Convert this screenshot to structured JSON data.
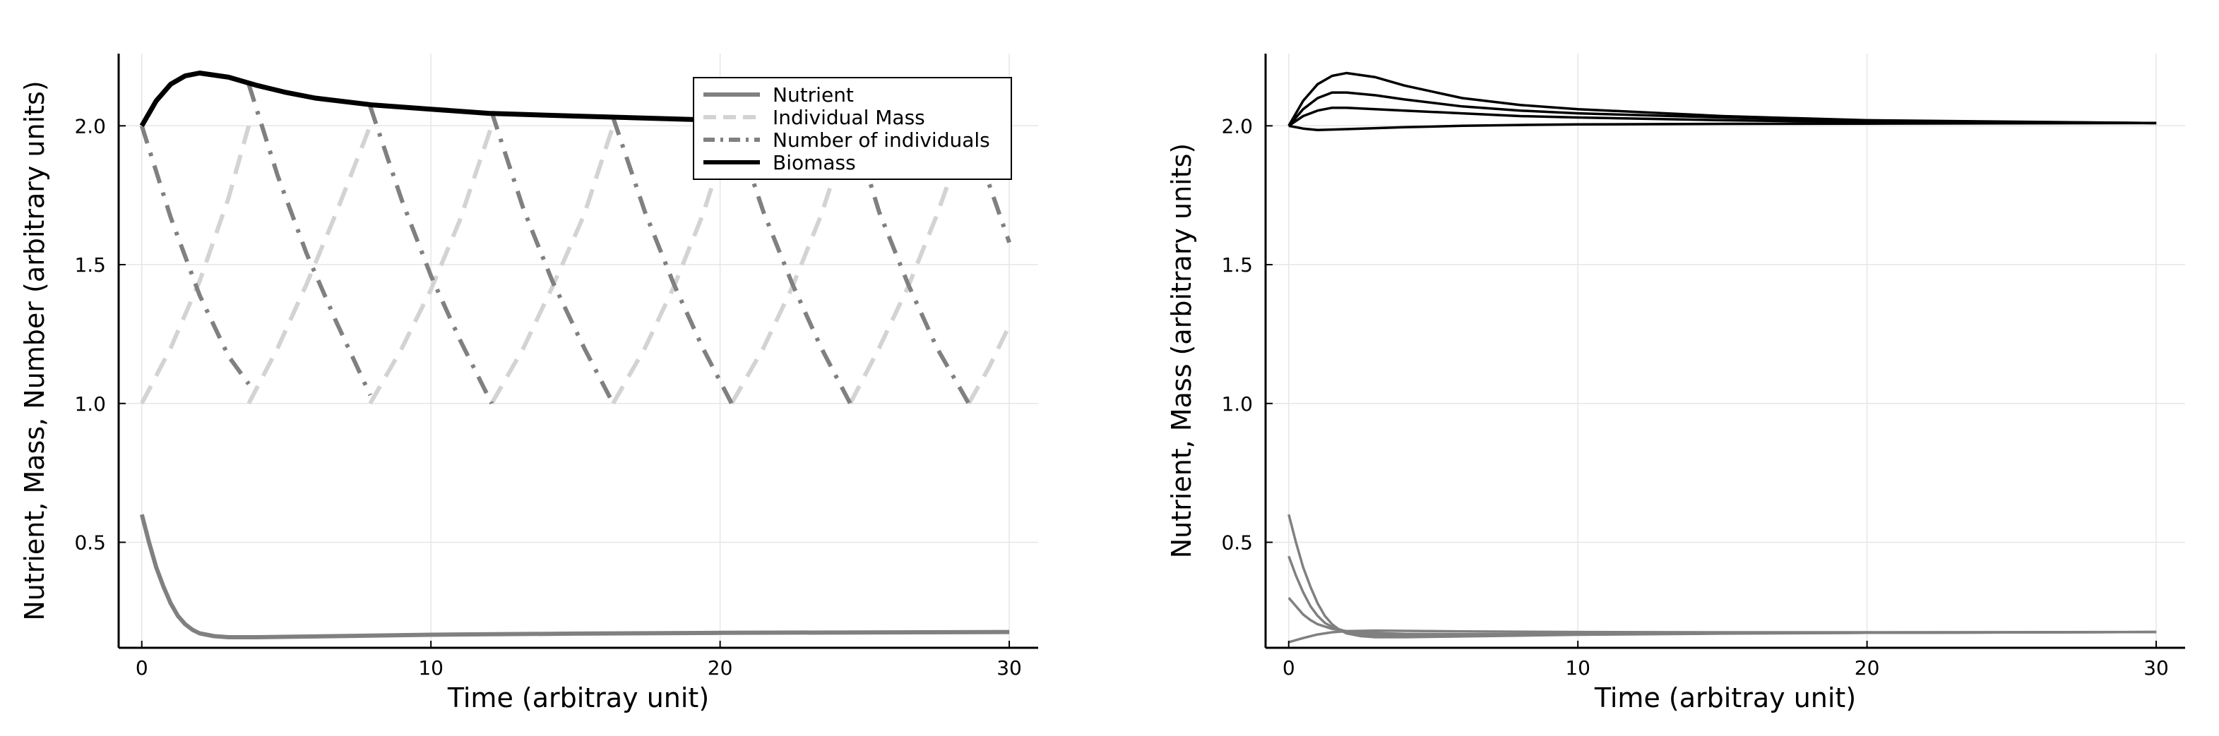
{
  "chart_data": [
    {
      "type": "line",
      "xlabel": "Time (arbitray unit)",
      "ylabel": "Nutrient, Mass, Number (arbitrary units)",
      "xlim": [
        -0.8,
        31
      ],
      "ylim": [
        0.12,
        2.26
      ],
      "xticks": [
        0,
        10,
        20,
        30
      ],
      "yticks": [
        0.5,
        1.0,
        1.5,
        2.0
      ],
      "grid": true,
      "legend": "top-right",
      "series": [
        {
          "name": "Nutrient",
          "style": "solid",
          "color": "#808080",
          "width": 6,
          "x": [
            0,
            0.25,
            0.5,
            0.75,
            1,
            1.25,
            1.5,
            1.75,
            2,
            2.5,
            3,
            4,
            6,
            10,
            15,
            20,
            30
          ],
          "y": [
            0.6,
            0.5,
            0.41,
            0.34,
            0.28,
            0.235,
            0.205,
            0.185,
            0.172,
            0.162,
            0.158,
            0.158,
            0.161,
            0.167,
            0.171,
            0.174,
            0.177
          ]
        },
        {
          "name": "Individual Mass",
          "style": "dash",
          "color": "#d3d3d3",
          "width": 6,
          "segments": [
            {
              "x": [
                0,
                1,
                2,
                3,
                3.7
              ],
              "y": [
                1.0,
                1.2,
                1.44,
                1.74,
                2.0
              ]
            },
            {
              "x": [
                3.7,
                4.7,
                5.7,
                6.7,
                7.9
              ],
              "y": [
                1.0,
                1.2,
                1.43,
                1.68,
                2.0
              ]
            },
            {
              "x": [
                7.9,
                9,
                10,
                11,
                12.1
              ],
              "y": [
                1.0,
                1.2,
                1.41,
                1.66,
                2.0
              ]
            },
            {
              "x": [
                12.1,
                13.2,
                14.2,
                15.3,
                16.3
              ],
              "y": [
                1.0,
                1.2,
                1.42,
                1.68,
                2.0
              ]
            },
            {
              "x": [
                16.3,
                17.4,
                18.4,
                19.4,
                20.4
              ],
              "y": [
                1.0,
                1.2,
                1.42,
                1.68,
                2.0
              ]
            },
            {
              "x": [
                20.4,
                21.5,
                22.5,
                23.5,
                24.5
              ],
              "y": [
                1.0,
                1.2,
                1.42,
                1.68,
                2.0
              ]
            },
            {
              "x": [
                24.5,
                25.5,
                26.5,
                27.5,
                28.6
              ],
              "y": [
                1.0,
                1.2,
                1.42,
                1.68,
                2.0
              ]
            },
            {
              "x": [
                28.6,
                29.3,
                30
              ],
              "y": [
                1.0,
                1.13,
                1.28
              ]
            }
          ]
        },
        {
          "name": "Number of individuals",
          "style": "dashdot",
          "color": "#808080",
          "width": 6,
          "segments": [
            {
              "x": [
                0,
                1,
                2,
                3,
                3.7
              ],
              "y": [
                2.0,
                1.67,
                1.39,
                1.17,
                1.07
              ]
            },
            {
              "x": [
                3.7,
                4.7,
                5.7,
                6.7,
                7.9
              ],
              "y": [
                2.15,
                1.82,
                1.54,
                1.3,
                1.03
              ]
            },
            {
              "x": [
                7.9,
                9,
                10,
                11,
                12.1
              ],
              "y": [
                2.07,
                1.73,
                1.46,
                1.23,
                1.0
              ]
            },
            {
              "x": [
                12.1,
                13.2,
                14.2,
                15.3,
                16.3
              ],
              "y": [
                2.05,
                1.7,
                1.44,
                1.2,
                1.0
              ]
            },
            {
              "x": [
                16.3,
                17.4,
                18.4,
                19.4,
                20.4
              ],
              "y": [
                2.03,
                1.69,
                1.43,
                1.2,
                1.0
              ]
            },
            {
              "x": [
                20.4,
                21.5,
                22.5,
                23.5,
                24.5
              ],
              "y": [
                2.03,
                1.69,
                1.43,
                1.2,
                1.0
              ]
            },
            {
              "x": [
                24.5,
                25.5,
                26.5,
                27.5,
                28.6
              ],
              "y": [
                2.03,
                1.69,
                1.43,
                1.2,
                1.0
              ]
            },
            {
              "x": [
                28.6,
                29.3,
                30
              ],
              "y": [
                2.03,
                1.79,
                1.58
              ]
            }
          ]
        },
        {
          "name": "Biomass",
          "style": "solid",
          "color": "#000000",
          "width": 7,
          "x": [
            0,
            0.5,
            1,
            1.5,
            2,
            3,
            4,
            5,
            6,
            8,
            10,
            12,
            15,
            20,
            25,
            30
          ],
          "y": [
            2.0,
            2.09,
            2.15,
            2.18,
            2.19,
            2.175,
            2.145,
            2.12,
            2.1,
            2.075,
            2.06,
            2.045,
            2.035,
            2.02,
            2.015,
            2.01
          ]
        }
      ]
    },
    {
      "type": "line",
      "xlabel": "Time (arbitray unit)",
      "ylabel": "Nutrient, Mass (arbitrary units)",
      "xlim": [
        -0.8,
        31
      ],
      "ylim": [
        0.12,
        2.26
      ],
      "xticks": [
        0,
        10,
        20,
        30
      ],
      "yticks": [
        0.5,
        1.0,
        1.5,
        2.0
      ],
      "grid": true,
      "series": [
        {
          "style": "solid",
          "color": "#000000",
          "width": 3.5,
          "x": [
            0,
            0.5,
            1,
            1.5,
            2,
            3,
            4,
            6,
            8,
            10,
            15,
            20,
            30
          ],
          "y": [
            2.0,
            2.09,
            2.15,
            2.18,
            2.19,
            2.175,
            2.145,
            2.1,
            2.075,
            2.06,
            2.035,
            2.02,
            2.01
          ]
        },
        {
          "style": "solid",
          "color": "#000000",
          "width": 3.5,
          "x": [
            0,
            0.5,
            1,
            1.5,
            2,
            3,
            4,
            6,
            8,
            10,
            15,
            20,
            30
          ],
          "y": [
            2.0,
            2.06,
            2.1,
            2.12,
            2.12,
            2.11,
            2.095,
            2.07,
            2.055,
            2.045,
            2.03,
            2.018,
            2.01
          ]
        },
        {
          "style": "solid",
          "color": "#000000",
          "width": 3.5,
          "x": [
            0,
            0.5,
            1,
            1.5,
            2,
            3,
            4,
            6,
            8,
            10,
            15,
            20,
            30
          ],
          "y": [
            2.0,
            2.035,
            2.055,
            2.065,
            2.065,
            2.06,
            2.055,
            2.045,
            2.035,
            2.03,
            2.02,
            2.013,
            2.01
          ]
        },
        {
          "style": "solid",
          "color": "#000000",
          "width": 3.5,
          "x": [
            0,
            0.5,
            1,
            2,
            4,
            6,
            8,
            10,
            15,
            20,
            30
          ],
          "y": [
            2.0,
            1.99,
            1.985,
            1.988,
            1.995,
            2.0,
            2.003,
            2.005,
            2.007,
            2.008,
            2.01
          ]
        },
        {
          "style": "solid",
          "color": "#808080",
          "width": 3.5,
          "x": [
            0,
            0.25,
            0.5,
            0.75,
            1,
            1.25,
            1.5,
            1.75,
            2,
            2.5,
            3,
            4,
            6,
            10,
            15,
            20,
            30
          ],
          "y": [
            0.6,
            0.5,
            0.41,
            0.34,
            0.28,
            0.235,
            0.205,
            0.185,
            0.172,
            0.162,
            0.158,
            0.158,
            0.161,
            0.167,
            0.171,
            0.174,
            0.177
          ]
        },
        {
          "style": "solid",
          "color": "#808080",
          "width": 3.5,
          "x": [
            0,
            0.25,
            0.5,
            0.75,
            1,
            1.25,
            1.5,
            2,
            2.5,
            3,
            4,
            6,
            10,
            15,
            20,
            30
          ],
          "y": [
            0.45,
            0.38,
            0.32,
            0.27,
            0.235,
            0.21,
            0.195,
            0.178,
            0.17,
            0.166,
            0.163,
            0.164,
            0.168,
            0.172,
            0.174,
            0.177
          ]
        },
        {
          "style": "solid",
          "color": "#808080",
          "width": 3.5,
          "x": [
            0,
            0.25,
            0.5,
            0.75,
            1,
            1.5,
            2,
            2.5,
            3,
            4,
            6,
            10,
            15,
            20,
            30
          ],
          "y": [
            0.3,
            0.27,
            0.24,
            0.22,
            0.205,
            0.188,
            0.18,
            0.176,
            0.173,
            0.17,
            0.169,
            0.17,
            0.172,
            0.174,
            0.177
          ]
        },
        {
          "style": "solid",
          "color": "#808080",
          "width": 3.5,
          "x": [
            0,
            0.5,
            1,
            1.5,
            2,
            3,
            4,
            6,
            10,
            15,
            20,
            30
          ],
          "y": [
            0.14,
            0.155,
            0.168,
            0.176,
            0.18,
            0.182,
            0.181,
            0.179,
            0.177,
            0.176,
            0.176,
            0.177
          ]
        }
      ]
    }
  ]
}
